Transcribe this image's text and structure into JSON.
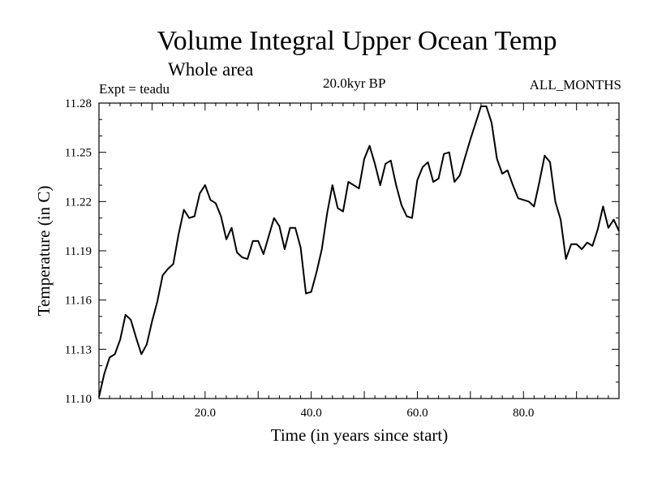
{
  "header": {
    "title": "Volume Integral Upper Ocean Temp",
    "subtitle": "Whole area",
    "expt_label": "Expt = teadu",
    "period_label": "20.0kyr BP",
    "months_label": "ALL_MONTHS"
  },
  "chart_data": {
    "type": "line",
    "title": "Volume Integral Upper Ocean Temp",
    "subtitle": "Whole area",
    "xlabel": "Time (in years since start)",
    "ylabel": "Temperature (in C)",
    "xlim": [
      0,
      98
    ],
    "ylim": [
      11.1,
      11.28
    ],
    "x_ticks": [
      20,
      40,
      60,
      80
    ],
    "x_tick_labels": [
      "20.0",
      "40.0",
      "60.0",
      "80.0"
    ],
    "y_ticks": [
      11.1,
      11.13,
      11.16,
      11.19,
      11.22,
      11.25,
      11.28
    ],
    "y_tick_labels": [
      "11.10",
      "11.13",
      "11.16",
      "11.19",
      "11.22",
      "11.25",
      "11.28"
    ],
    "grid": false,
    "series": [
      {
        "name": "teadu",
        "color": "#000000",
        "x": [
          0,
          1,
          2,
          3,
          4,
          5,
          6,
          7,
          8,
          9,
          10,
          11,
          12,
          13,
          14,
          15,
          16,
          17,
          18,
          19,
          20,
          21,
          22,
          23,
          24,
          25,
          26,
          27,
          28,
          29,
          30,
          31,
          32,
          33,
          34,
          35,
          36,
          37,
          38,
          39,
          40,
          41,
          42,
          43,
          44,
          45,
          46,
          47,
          48,
          49,
          50,
          51,
          52,
          53,
          54,
          55,
          56,
          57,
          58,
          59,
          60,
          61,
          62,
          63,
          64,
          65,
          66,
          67,
          68,
          69,
          70,
          71,
          72,
          73,
          74,
          75,
          76,
          77,
          78,
          79,
          80,
          81,
          82,
          83,
          84,
          85,
          86,
          87,
          88,
          89,
          90,
          91,
          92,
          93,
          94,
          95,
          96,
          97,
          98
        ],
        "values": [
          11.101,
          11.115,
          11.125,
          11.127,
          11.136,
          11.151,
          11.148,
          11.137,
          11.127,
          11.133,
          11.147,
          11.159,
          11.175,
          11.179,
          11.182,
          11.2,
          11.215,
          11.21,
          11.211,
          11.225,
          11.23,
          11.221,
          11.219,
          11.211,
          11.197,
          11.204,
          11.189,
          11.186,
          11.185,
          11.196,
          11.196,
          11.188,
          11.199,
          11.21,
          11.205,
          11.191,
          11.204,
          11.204,
          11.192,
          11.164,
          11.165,
          11.177,
          11.191,
          11.213,
          11.23,
          11.216,
          11.214,
          11.232,
          11.23,
          11.228,
          11.246,
          11.254,
          11.243,
          11.23,
          11.243,
          11.245,
          11.23,
          11.218,
          11.211,
          11.21,
          11.233,
          11.241,
          11.244,
          11.232,
          11.234,
          11.249,
          11.25,
          11.232,
          11.236,
          11.247,
          11.258,
          11.268,
          11.278,
          11.278,
          11.268,
          11.246,
          11.237,
          11.239,
          11.23,
          11.222,
          11.221,
          11.22,
          11.217,
          11.232,
          11.248,
          11.244,
          11.22,
          11.209,
          11.185,
          11.194,
          11.194,
          11.191,
          11.195,
          11.193,
          11.203,
          11.217,
          11.204,
          11.209,
          11.202
        ]
      }
    ]
  }
}
